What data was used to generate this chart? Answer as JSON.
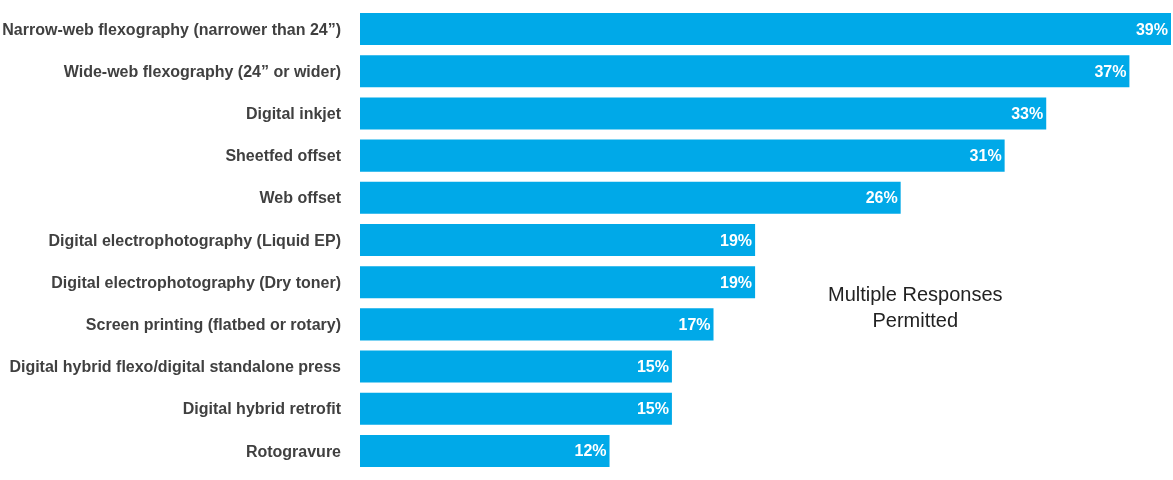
{
  "chart_data": {
    "type": "bar",
    "orientation": "horizontal",
    "categories": [
      "Narrow-web flexography (narrower than 24”)",
      "Wide-web flexography (24” or wider)",
      "Digital inkjet",
      "Sheetfed offset",
      "Web offset",
      "Digital electrophotography (Liquid EP)",
      "Digital electrophotography (Dry toner)",
      "Screen printing (flatbed or rotary)",
      "Digital hybrid flexo/digital standalone press",
      "Digital hybrid retrofit",
      "Rotogravure"
    ],
    "values": [
      39,
      37,
      33,
      31,
      26,
      19,
      19,
      17,
      15,
      15,
      12
    ],
    "value_labels": [
      "39%",
      "37%",
      "33%",
      "31%",
      "26%",
      "19%",
      "19%",
      "17%",
      "15%",
      "15%",
      "12%"
    ],
    "color": "#00a9e8",
    "annotations": [
      "Multiple Responses Permitted"
    ],
    "legend": false
  }
}
